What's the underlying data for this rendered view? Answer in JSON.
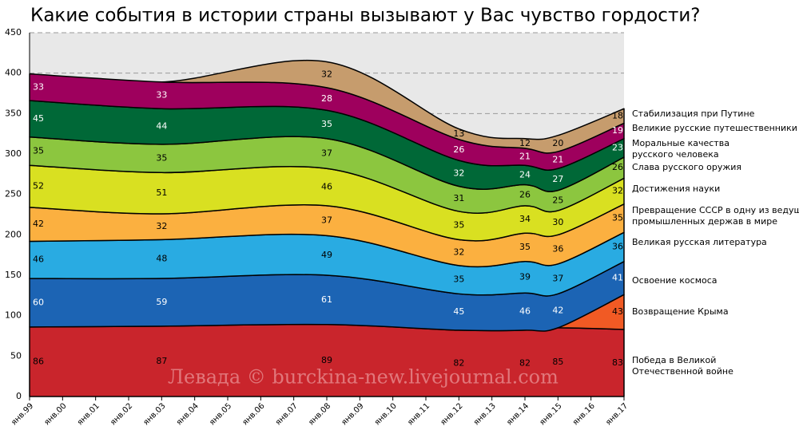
{
  "chart_data": {
    "type": "stacked_area",
    "title": "Какие события в истории страны вызывают у Вас чувство гордости?",
    "watermark": "Левада © burckina-new.livejournal.com",
    "categories": [
      "янв.99",
      "янв.00",
      "янв.01",
      "янв.02",
      "янв.03",
      "янв.04",
      "янв.05",
      "янв.06",
      "янв.07",
      "янв.08",
      "янв.09",
      "янв.10",
      "янв.11",
      "янв.12",
      "янв.13",
      "янв.14",
      "янв.15",
      "янв.16",
      "янв.17"
    ],
    "ylim": [
      0,
      450
    ],
    "yticks": [
      0,
      50,
      100,
      150,
      200,
      250,
      300,
      350,
      400,
      450
    ],
    "grid": true,
    "series": [
      {
        "name": "Победа в Великой\nОтечественной войне",
        "color": "#c9252c",
        "label_color": "#000000",
        "values": [
          86,
          null,
          null,
          null,
          87,
          null,
          null,
          null,
          null,
          89,
          null,
          null,
          null,
          82,
          null,
          82,
          85,
          null,
          83
        ]
      },
      {
        "name": "Возвращение Крыма",
        "color": "#f15a24",
        "label_color": "#000000",
        "values": [
          null,
          null,
          null,
          null,
          null,
          null,
          null,
          null,
          null,
          null,
          null,
          null,
          null,
          null,
          null,
          null,
          0,
          null,
          43
        ]
      },
      {
        "name": "Освоение космоса",
        "color": "#1c64b4",
        "label_color": "#ffffff",
        "values": [
          60,
          null,
          null,
          null,
          59,
          null,
          null,
          null,
          null,
          61,
          null,
          null,
          null,
          45,
          null,
          46,
          42,
          null,
          41
        ]
      },
      {
        "name": "Великая русская литература",
        "color": "#29abe2",
        "label_color": "#000000",
        "values": [
          46,
          null,
          null,
          null,
          48,
          null,
          null,
          null,
          null,
          49,
          null,
          null,
          null,
          35,
          null,
          39,
          37,
          null,
          36
        ]
      },
      {
        "name": "Превращение СССР в одну из ведущих\nпромышленных держав в мире",
        "color": "#fbb040",
        "label_color": "#000000",
        "values": [
          42,
          null,
          null,
          null,
          32,
          null,
          null,
          null,
          null,
          37,
          null,
          null,
          null,
          32,
          null,
          35,
          36,
          null,
          35
        ]
      },
      {
        "name": "Достижения науки",
        "color": "#d9e021",
        "label_color": "#000000",
        "values": [
          52,
          null,
          null,
          null,
          51,
          null,
          null,
          null,
          null,
          46,
          null,
          null,
          null,
          35,
          null,
          34,
          30,
          null,
          32
        ]
      },
      {
        "name": "Слава русского оружия",
        "color": "#8cc63f",
        "label_color": "#000000",
        "values": [
          35,
          null,
          null,
          null,
          35,
          null,
          null,
          null,
          null,
          37,
          null,
          null,
          null,
          31,
          null,
          26,
          25,
          null,
          26
        ]
      },
      {
        "name": "Моральные качества\nрусского человека",
        "color": "#006837",
        "label_color": "#ffffff",
        "values": [
          45,
          null,
          null,
          null,
          44,
          null,
          null,
          null,
          null,
          35,
          null,
          null,
          null,
          32,
          null,
          24,
          27,
          null,
          23
        ]
      },
      {
        "name": "Великие русские путешественники",
        "color": "#9e005d",
        "label_color": "#ffffff",
        "values": [
          33,
          null,
          null,
          null,
          33,
          null,
          null,
          null,
          null,
          28,
          null,
          null,
          null,
          26,
          null,
          21,
          21,
          null,
          19
        ]
      },
      {
        "name": "Стабилизация при Путине",
        "color": "#c69c6d",
        "label_color": "#000000",
        "values": [
          null,
          null,
          null,
          null,
          0,
          null,
          null,
          null,
          null,
          32,
          null,
          null,
          null,
          13,
          null,
          12,
          20,
          null,
          18
        ]
      }
    ]
  }
}
